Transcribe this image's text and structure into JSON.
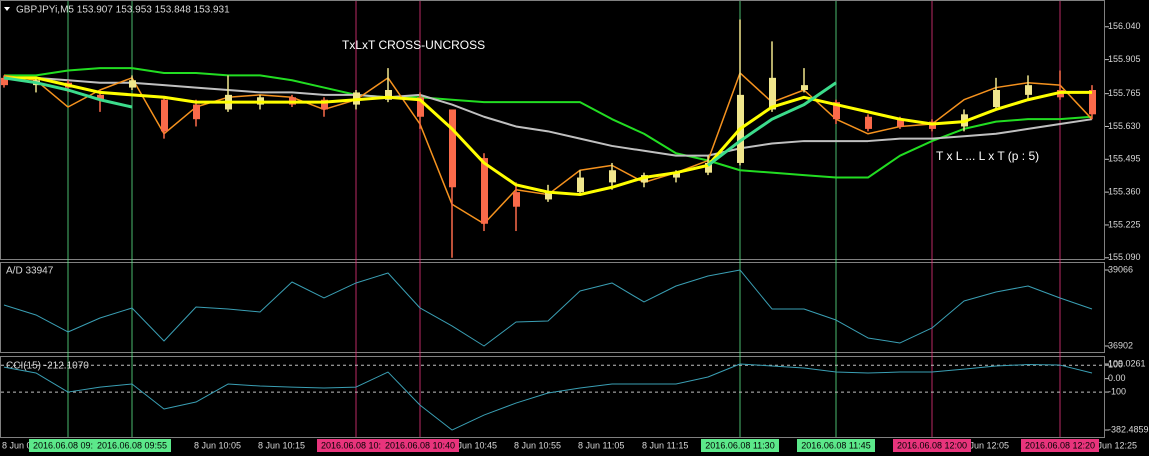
{
  "chart_data": [
    {
      "type": "candlestick",
      "title": "GBPJPYi,M5  153.907 153.953 153.848 153.931",
      "annotations": [
        "TxLxT CROSS-UNCROSS",
        "T x L ... L x T (p : 5)"
      ],
      "categories": [
        "8 Jun 09:35",
        null,
        "2016.06.08 09:45",
        null,
        "2016.06.08 09:55",
        null,
        "8 Jun 10:05",
        null,
        "8 Jun 10:15",
        null,
        null,
        "2016.06.08 10:30",
        null,
        "2016.06.08 10:40",
        "8 Jun 10:45",
        null,
        "8 Jun 10:55",
        null,
        "8 Jun 11:05",
        null,
        "8 Jun 11:15",
        null,
        null,
        "2016.06.08 11:30",
        null,
        null,
        "2016.06.08 11:45",
        null,
        null,
        "2016.06.08 12:00",
        "8 Jun 12:05",
        null,
        null,
        "2016.06.08 12:20",
        "8 Jun 12:25"
      ],
      "vlines": [
        null,
        null,
        "#5ce88a",
        null,
        "#5ce88a",
        null,
        null,
        null,
        null,
        null,
        null,
        "#e8347c",
        null,
        "#e8347c",
        null,
        null,
        null,
        null,
        null,
        null,
        null,
        null,
        null,
        "#5ce88a",
        null,
        null,
        "#5ce88a",
        null,
        null,
        "#e8347c",
        null,
        null,
        null,
        "#e8347c",
        null
      ],
      "up_color": "#f0e68c",
      "down_color": "#fa6a4a",
      "open": [
        155.83,
        155.8,
        155.81,
        155.76,
        155.79,
        155.74,
        155.72,
        155.7,
        155.72,
        155.75,
        155.74,
        155.72,
        155.74,
        155.75,
        155.7,
        155.5,
        155.36,
        155.33,
        155.36,
        155.4,
        155.4,
        155.42,
        155.44,
        155.48,
        155.7,
        155.78,
        155.73,
        155.67,
        155.66,
        155.65,
        155.63,
        155.71,
        155.76,
        155.78,
        155.78
      ],
      "high": [
        155.84,
        155.83,
        155.82,
        155.78,
        155.84,
        155.75,
        155.74,
        155.84,
        155.76,
        155.76,
        155.75,
        155.78,
        155.87,
        155.77,
        155.7,
        155.52,
        155.4,
        155.39,
        155.45,
        155.48,
        155.44,
        155.45,
        155.51,
        156.07,
        155.98,
        155.87,
        155.74,
        155.68,
        155.67,
        155.66,
        155.7,
        155.83,
        155.84,
        155.86,
        155.8
      ],
      "low": [
        155.79,
        155.77,
        155.77,
        155.69,
        155.78,
        155.58,
        155.63,
        155.69,
        155.7,
        155.71,
        155.67,
        155.7,
        155.73,
        155.62,
        155.09,
        155.2,
        155.2,
        155.32,
        155.35,
        155.37,
        155.38,
        155.4,
        155.43,
        155.47,
        155.69,
        155.77,
        155.64,
        155.61,
        155.62,
        155.61,
        155.61,
        155.7,
        155.74,
        155.74,
        155.66
      ],
      "close": [
        155.8,
        155.82,
        155.79,
        155.74,
        155.82,
        155.61,
        155.66,
        155.76,
        155.75,
        155.72,
        155.7,
        155.77,
        155.78,
        155.67,
        155.38,
        155.23,
        155.3,
        155.36,
        155.42,
        155.45,
        155.43,
        155.44,
        155.48,
        155.76,
        155.83,
        155.8,
        155.66,
        155.62,
        155.63,
        155.62,
        155.68,
        155.78,
        155.8,
        155.75,
        155.68
      ],
      "series": [
        {
          "color": "#22dd22",
          "width": 2,
          "values": [
            155.84,
            155.84,
            155.86,
            155.87,
            155.87,
            155.85,
            155.85,
            155.84,
            155.84,
            155.82,
            155.79,
            155.76,
            155.75,
            155.75,
            155.74,
            155.73,
            155.73,
            155.73,
            155.73,
            155.66,
            155.6,
            155.52,
            155.49,
            155.45,
            155.44,
            155.43,
            155.42,
            155.42,
            155.51,
            155.57,
            155.62,
            155.65,
            155.66,
            155.66,
            155.67
          ]
        },
        {
          "color": "#c0c0c0",
          "width": 2,
          "values": [
            155.83,
            155.83,
            155.82,
            155.81,
            155.81,
            155.8,
            155.79,
            155.78,
            155.77,
            155.77,
            155.76,
            155.76,
            155.75,
            155.76,
            155.72,
            155.67,
            155.63,
            155.61,
            155.58,
            155.55,
            155.53,
            155.51,
            155.51,
            155.54,
            155.56,
            155.57,
            155.57,
            155.57,
            155.58,
            155.58,
            155.59,
            155.6,
            155.62,
            155.64,
            155.66
          ]
        },
        {
          "color": "#f5921e",
          "width": 1.5,
          "values": [
            155.84,
            155.82,
            155.71,
            155.78,
            155.83,
            155.6,
            155.71,
            155.75,
            155.76,
            155.75,
            155.7,
            155.74,
            155.83,
            155.64,
            155.31,
            155.23,
            155.37,
            155.35,
            155.45,
            155.47,
            155.4,
            155.44,
            155.49,
            155.85,
            155.73,
            155.78,
            155.66,
            155.6,
            155.63,
            155.64,
            155.74,
            155.79,
            155.81,
            155.8,
            155.66
          ]
        },
        {
          "color": "#ffff00",
          "width": 3,
          "values": [
            155.83,
            155.83,
            155.8,
            155.77,
            155.76,
            155.75,
            155.73,
            155.73,
            155.73,
            155.73,
            155.73,
            155.74,
            155.75,
            155.74,
            155.62,
            155.48,
            155.39,
            155.36,
            155.35,
            155.38,
            155.42,
            155.44,
            155.47,
            155.62,
            155.71,
            155.75,
            155.72,
            155.69,
            155.66,
            155.64,
            155.65,
            155.7,
            155.74,
            155.77,
            155.77
          ]
        },
        {
          "color": "#3cdc8c",
          "width": 3,
          "values": [
            155.83,
            155.81,
            155.78,
            155.74,
            155.71,
            null,
            null,
            null,
            null,
            null,
            null,
            null,
            null,
            null,
            null,
            null,
            null,
            null,
            null,
            null,
            null,
            null,
            155.47,
            155.57,
            155.66,
            155.72,
            155.81,
            null,
            null,
            null,
            null,
            null,
            null,
            null,
            null
          ]
        }
      ],
      "ylim": [
        155.085,
        156.146
      ],
      "yticks": [
        {
          "value": 156.04,
          "label": "156.040"
        },
        155.905,
        {
          "value": 155.765,
          "label": "155.765"
        },
        {
          "value": 155.63,
          "label": "155.630"
        },
        155.495,
        {
          "value": 155.36,
          "label": "155.360"
        },
        155.225,
        {
          "value": 155.09,
          "label": "155.090"
        }
      ]
    },
    {
      "type": "line",
      "title": "A/D 33947",
      "color": "#3a9fb4",
      "values": [
        38070,
        37785,
        37301,
        37699,
        37984,
        37045,
        38013,
        37956,
        37870,
        38724,
        38269,
        38696,
        38980,
        37984,
        37472,
        36902,
        37586,
        37614,
        38468,
        38696,
        38155,
        38610,
        38895,
        39066,
        37956,
        37956,
        37642,
        37130,
        36988,
        37415,
        38183,
        38440,
        38610,
        38269,
        37956
      ],
      "ylim": [
        36731,
        39265
      ],
      "yticks": [
        39066,
        36902
      ]
    },
    {
      "type": "line",
      "title": "CCI(15) -212.1070",
      "color": "#3a9fb4",
      "values": [
        86,
        42,
        -100,
        -63,
        -40,
        -226,
        -174,
        -40,
        -55,
        -63,
        -70,
        -63,
        49,
        -197,
        -382.4859,
        -271,
        -182,
        -107,
        -70,
        -40,
        -40,
        -40,
        12,
        109.0261,
        94,
        79,
        49,
        42,
        49,
        49,
        71,
        94,
        105,
        101,
        42
      ],
      "ylim": [
        -427,
        161
      ],
      "yticks": [
        109.0261,
        100,
        {
          "value": 0,
          "label": "0.00"
        },
        -100,
        -382.4859
      ],
      "levels": [
        100,
        -100
      ]
    }
  ]
}
